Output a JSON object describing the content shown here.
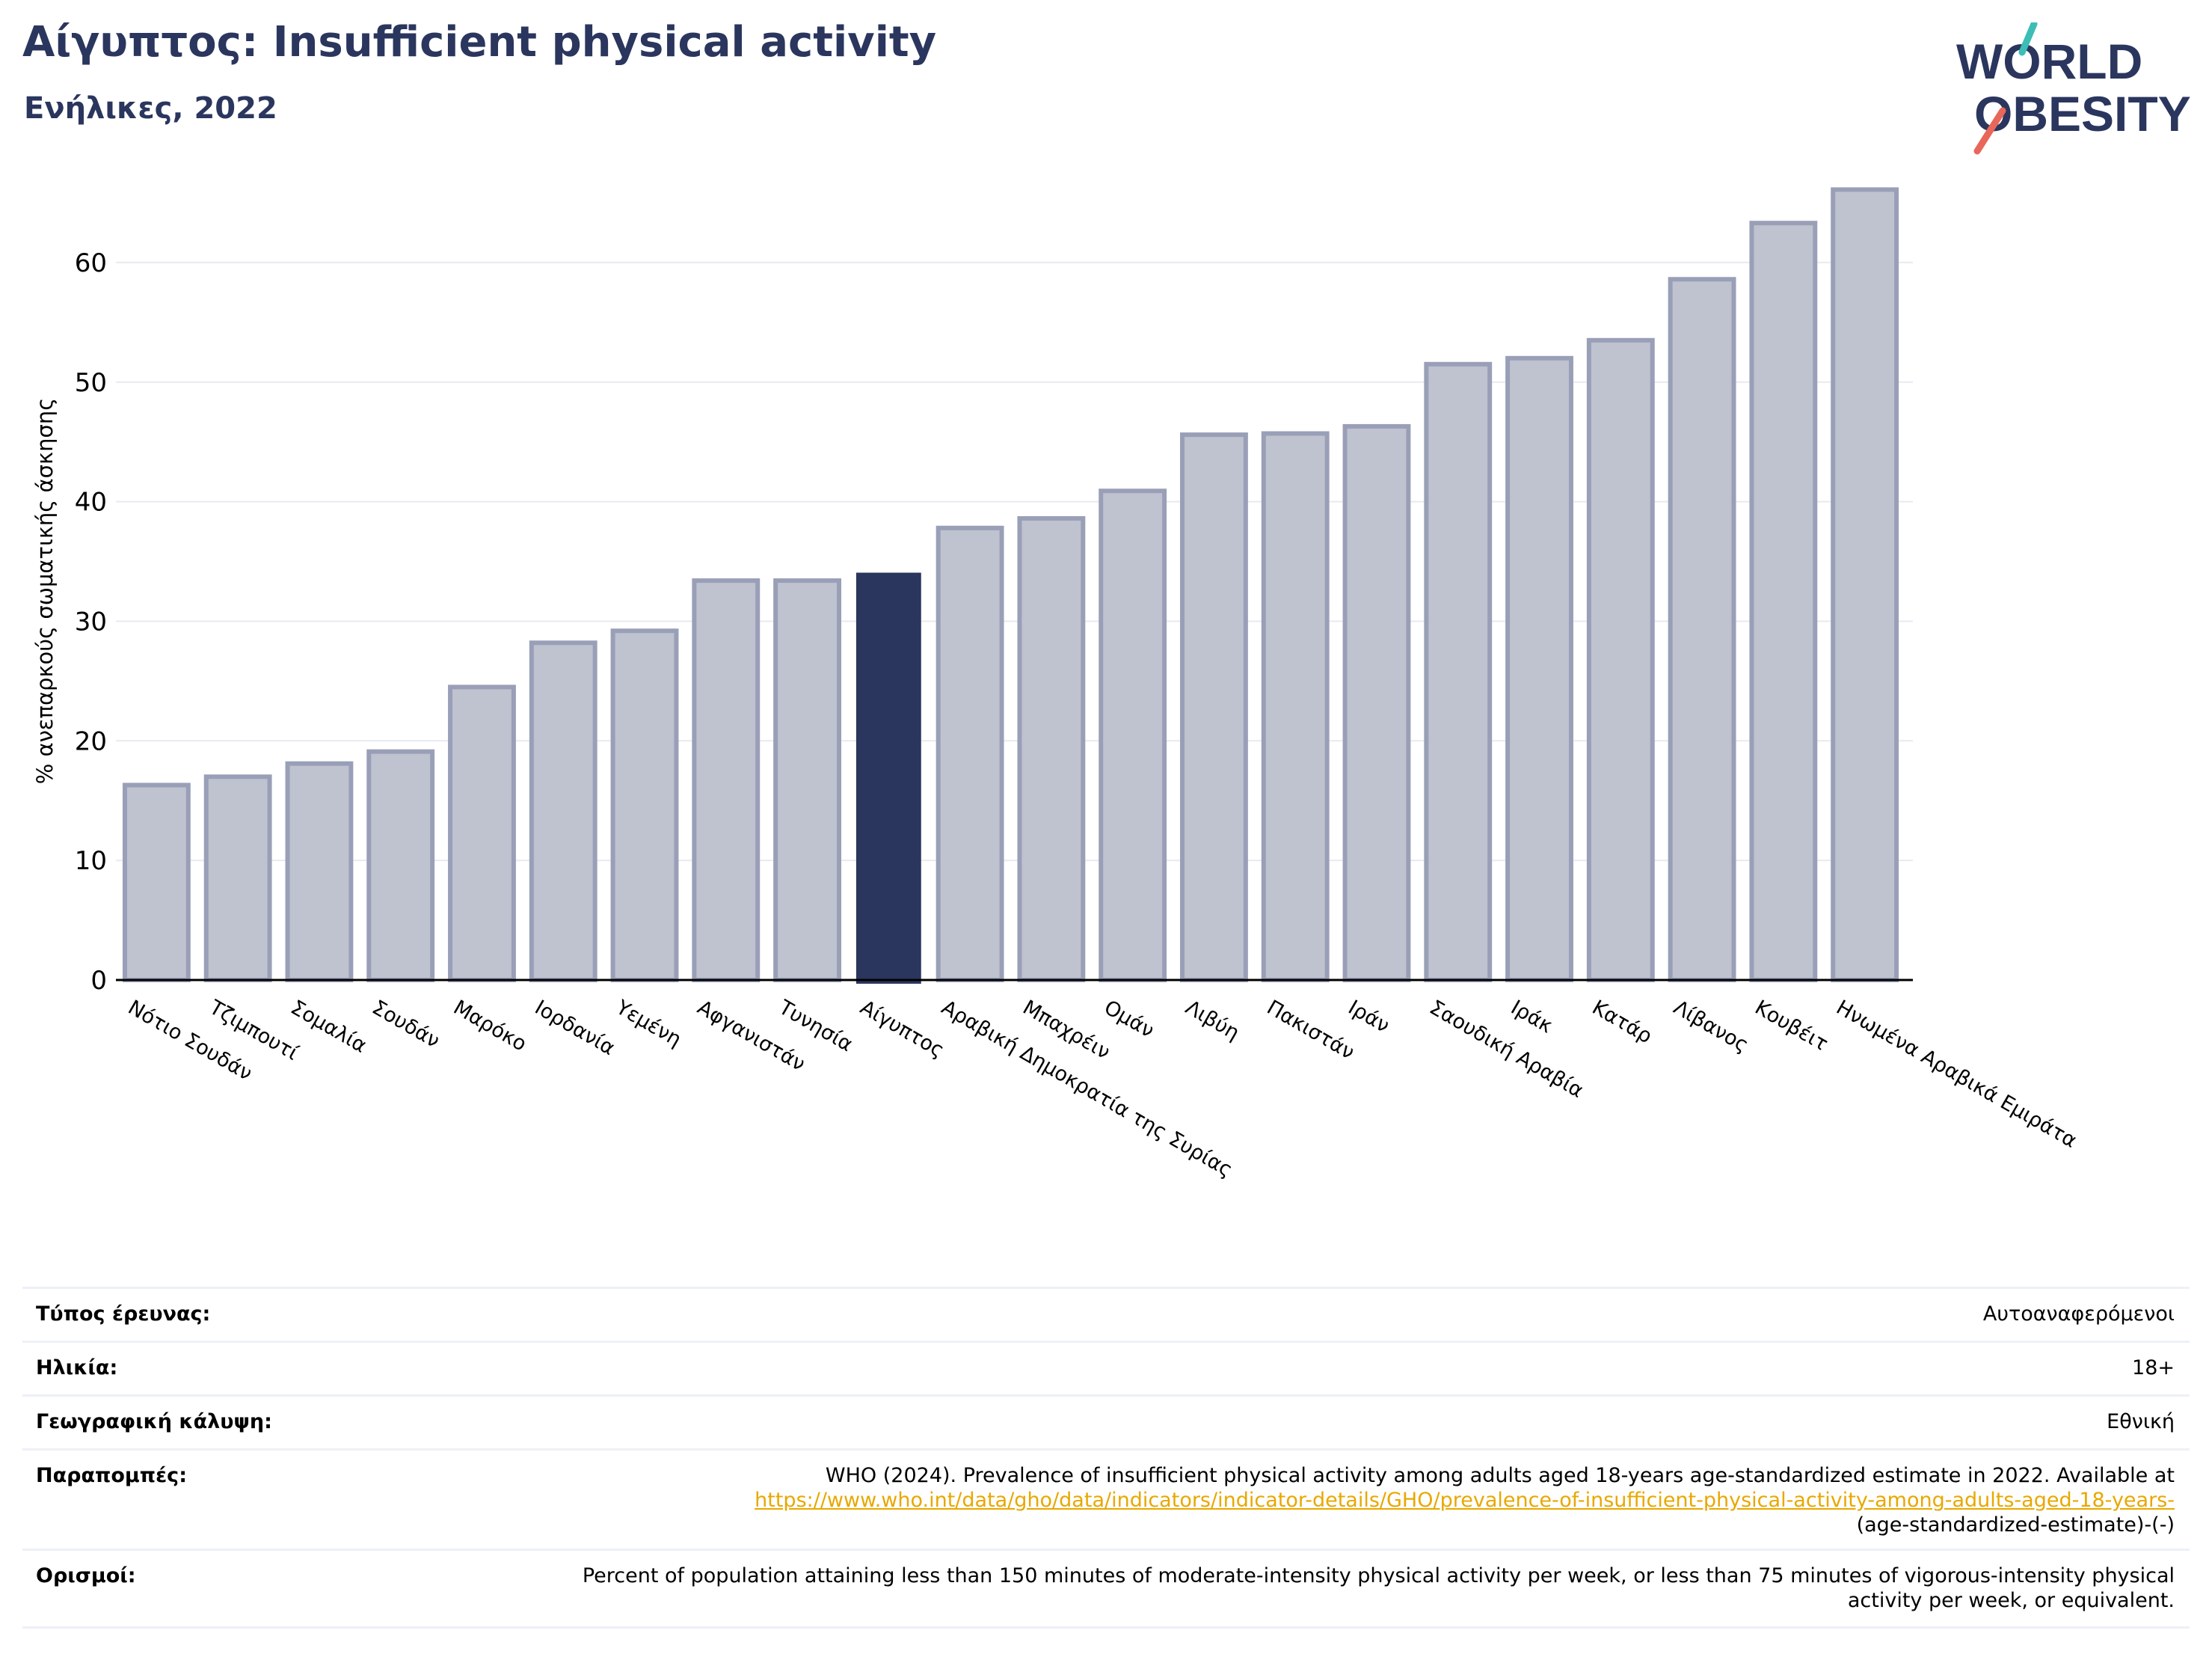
{
  "header": {
    "title": "Αίγυπτος: Insufficient physical activity",
    "subtitle": "Ενήλικες, 2022"
  },
  "logo": {
    "line1": "WORLD",
    "line2": "OBESITY"
  },
  "colors": {
    "highlight": "#2b365e",
    "bar": "#bfc2cf",
    "bar_edge": "#9a9fb8",
    "title": "#2b365e",
    "link": "#e8a800"
  },
  "chart_data": {
    "type": "bar",
    "ylabel": "% ανεπαρκούς σωματικής άσκησης",
    "ylim": [
      0,
      66
    ],
    "yticks": [
      0,
      10,
      20,
      30,
      40,
      50,
      60
    ],
    "grid": true,
    "highlight": "Αίγυπτος",
    "categories": [
      "Νότιο Σουδάν",
      "Τζιμπουτί",
      "Σομαλία",
      "Σουδάν",
      "Μαρόκο",
      "Ιορδανία",
      "Υεμένη",
      "Αφγανιστάν",
      "Τυνησία",
      "Αίγυπτος",
      "Αραβική Δημοκρατία της Συρίας",
      "Μπαχρέιν",
      "Ομάν",
      "Λιβύη",
      "Πακιστάν",
      "Ιράν",
      "Σαουδική Αραβία",
      "Ιράκ",
      "Κατάρ",
      "Λίβανος",
      "Κουβέιτ",
      "Ηνωμένα Αραβικά Εμιράτα"
    ],
    "values": [
      16.3,
      17.0,
      18.1,
      19.1,
      24.5,
      28.2,
      29.2,
      33.4,
      33.4,
      34.0,
      37.8,
      38.6,
      40.9,
      45.6,
      45.7,
      46.3,
      51.5,
      52.0,
      53.5,
      58.6,
      63.3,
      66.1
    ]
  },
  "info": [
    {
      "key": "Τύπος έρευνας:",
      "value": "Αυτοαναφερόμενοι"
    },
    {
      "key": "Ηλικία:",
      "value": "18+"
    },
    {
      "key": "Γεωγραφική κάλυψη:",
      "value": "Εθνική"
    },
    {
      "key": "Παραπομπές:",
      "value": "WHO (2024). Prevalence of insufficient physical activity among adults aged 18-years age-standardized estimate in 2022. Available at",
      "link": "https://www.who.int/data/gho/data/indicators/indicator-details/GHO/prevalence-of-insufficient-physical-activity-among-adults-aged-18-years-",
      "value_tail": "(age-standardized-estimate)-(-)"
    },
    {
      "key": "Ορισμοί:",
      "value": "Percent of population attaining less than 150 minutes of moderate-intensity physical activity per week, or less than 75 minutes of vigorous-intensity physical activity per week, or equivalent."
    }
  ]
}
